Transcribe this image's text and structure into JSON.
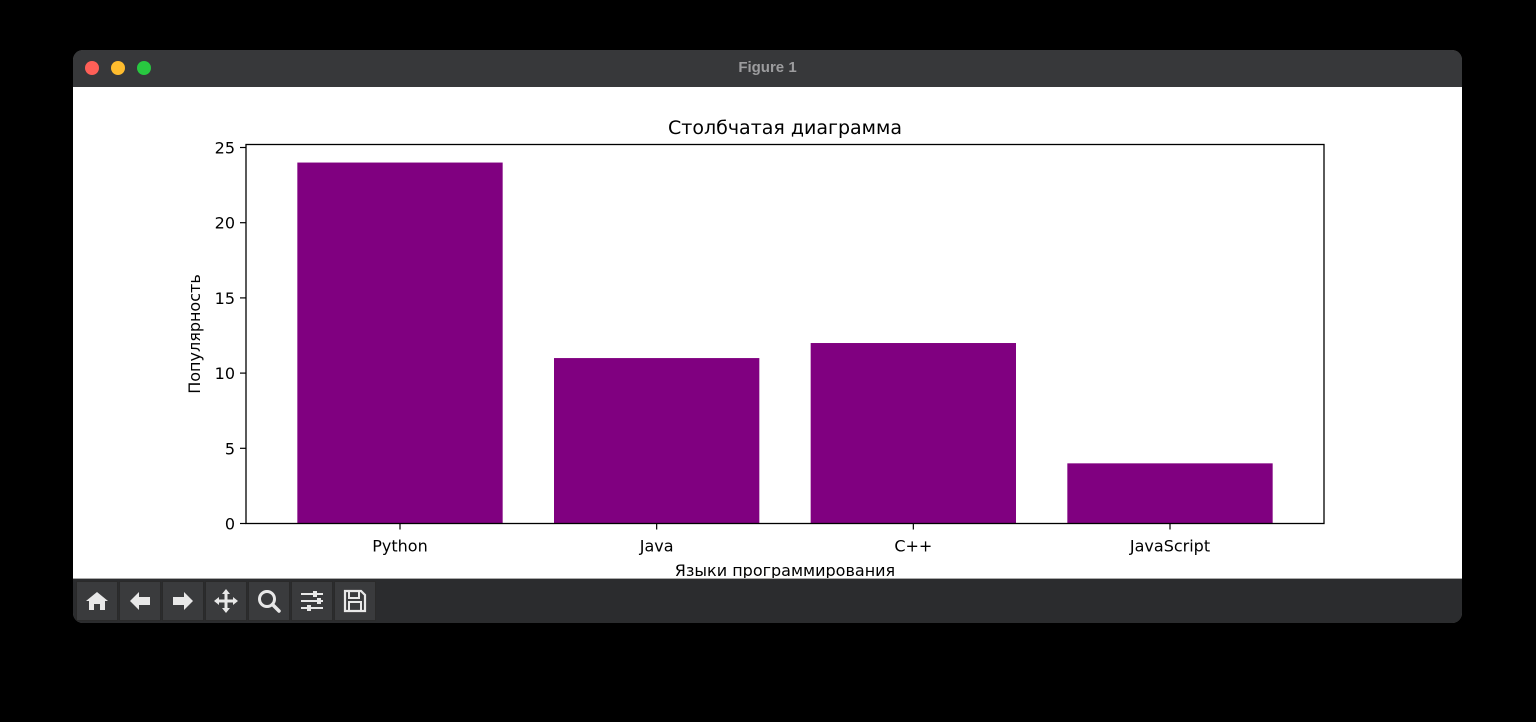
{
  "window": {
    "title": "Figure 1"
  },
  "toolbar": {
    "buttons": [
      {
        "name": "home-icon",
        "label": "Home"
      },
      {
        "name": "back-arrow-icon",
        "label": "Back"
      },
      {
        "name": "forward-arrow-icon",
        "label": "Forward"
      },
      {
        "name": "pan-move-icon",
        "label": "Pan"
      },
      {
        "name": "zoom-magnifier-icon",
        "label": "Zoom"
      },
      {
        "name": "configure-subplots-icon",
        "label": "Configure subplots"
      },
      {
        "name": "save-floppy-icon",
        "label": "Save"
      }
    ]
  },
  "chart_data": {
    "type": "bar",
    "title": "Столбчатая диаграмма",
    "xlabel": "Языки программирования",
    "ylabel": "Популярность",
    "categories": [
      "Python",
      "Java",
      "C++",
      "JavaScript"
    ],
    "values": [
      24,
      11,
      12,
      4
    ],
    "color": "#800080",
    "ylim": [
      0,
      25.2
    ],
    "yticks": [
      0,
      5,
      10,
      15,
      20,
      25
    ],
    "xlim": [
      -0.6,
      3.6
    ],
    "bar_width": 0.8,
    "grid": false,
    "legend": null
  }
}
